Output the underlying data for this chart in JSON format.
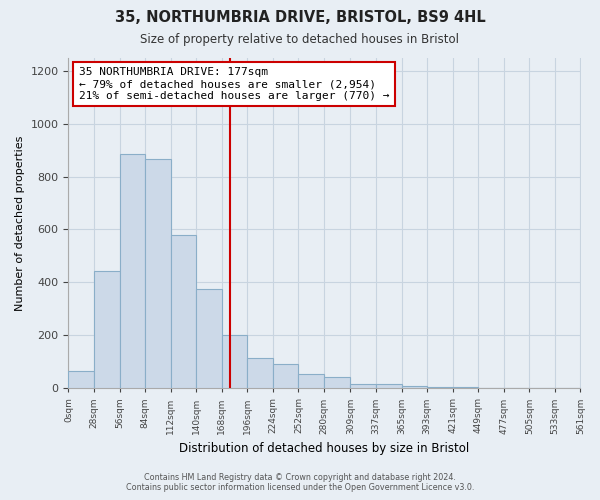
{
  "title": "35, NORTHUMBRIA DRIVE, BRISTOL, BS9 4HL",
  "subtitle": "Size of property relative to detached houses in Bristol",
  "xlabel": "Distribution of detached houses by size in Bristol",
  "ylabel": "Number of detached properties",
  "bar_color": "#ccd9e8",
  "bar_edge_color": "#8aaec8",
  "bin_edges": [
    0,
    28,
    56,
    84,
    112,
    140,
    168,
    196,
    224,
    252,
    280,
    309,
    337,
    365,
    393,
    421,
    449,
    477,
    505,
    533,
    561
  ],
  "bin_labels": [
    "0sqm",
    "28sqm",
    "56sqm",
    "84sqm",
    "112sqm",
    "140sqm",
    "168sqm",
    "196sqm",
    "224sqm",
    "252sqm",
    "280sqm",
    "309sqm",
    "337sqm",
    "365sqm",
    "393sqm",
    "421sqm",
    "449sqm",
    "477sqm",
    "505sqm",
    "533sqm",
    "561sqm"
  ],
  "bar_heights": [
    65,
    445,
    885,
    865,
    580,
    375,
    200,
    115,
    90,
    55,
    42,
    18,
    15,
    8,
    5,
    3,
    2,
    1,
    1,
    0
  ],
  "property_size": 177,
  "property_line_color": "#cc0000",
  "annotation_line1": "35 NORTHUMBRIA DRIVE: 177sqm",
  "annotation_line2": "← 79% of detached houses are smaller (2,954)",
  "annotation_line3": "21% of semi-detached houses are larger (770) →",
  "annotation_box_edge_color": "#cc0000",
  "ylim": [
    0,
    1250
  ],
  "yticks": [
    0,
    200,
    400,
    600,
    800,
    1000,
    1200
  ],
  "footer_line1": "Contains HM Land Registry data © Crown copyright and database right 2024.",
  "footer_line2": "Contains public sector information licensed under the Open Government Licence v3.0.",
  "background_color": "#e8eef4",
  "plot_bg_color": "#e8eef4",
  "grid_color": "#c8d4e0",
  "spine_color": "#aaaaaa"
}
